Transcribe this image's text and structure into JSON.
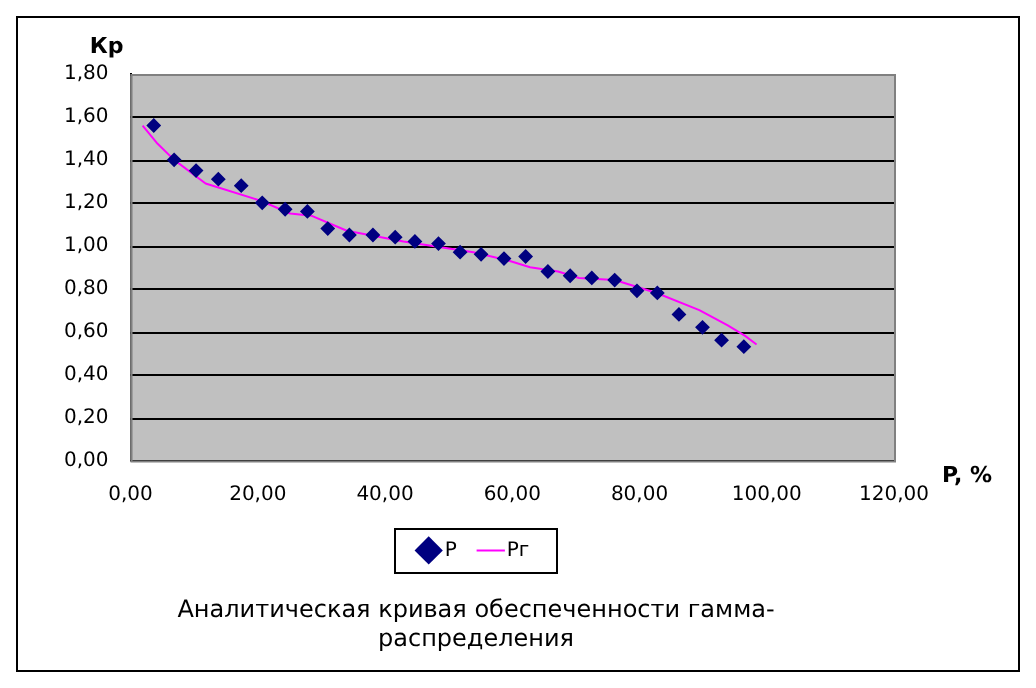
{
  "chart_data": {
    "type": "scatter",
    "title": "Аналитическая кривая обеспеченности гамма-распределения",
    "xlabel": "P, %",
    "ylabel": "Кр",
    "xlim": [
      0,
      120
    ],
    "xticks": [
      {
        "value": 0,
        "label": "0,00"
      },
      {
        "value": 20,
        "label": "20,00"
      },
      {
        "value": 40,
        "label": "40,00"
      },
      {
        "value": 60,
        "label": "60,00"
      },
      {
        "value": 80,
        "label": "80,00"
      },
      {
        "value": 100,
        "label": "100,00"
      },
      {
        "value": 120,
        "label": "120,00"
      }
    ],
    "ylim": [
      0,
      1.8
    ],
    "yticks": [
      {
        "value": 0,
        "label": "0,00"
      },
      {
        "value": 0.2,
        "label": "0,20"
      },
      {
        "value": 0.4,
        "label": "0,40"
      },
      {
        "value": 0.6,
        "label": "0,60"
      },
      {
        "value": 0.8,
        "label": "0,80"
      },
      {
        "value": 1.0,
        "label": "1,00"
      },
      {
        "value": 1.2,
        "label": "1,20"
      },
      {
        "value": 1.4,
        "label": "1,40"
      },
      {
        "value": 1.6,
        "label": "1,60"
      },
      {
        "value": 1.8,
        "label": "1,80"
      }
    ],
    "grid": "y",
    "legend": "bottom",
    "series": [
      {
        "name": "P",
        "marker": "diamond",
        "color": "#000080",
        "x": [
          3.65,
          6.85,
          10.3,
          13.8,
          17.4,
          20.7,
          24.3,
          27.8,
          31.0,
          34.4,
          38.1,
          41.6,
          44.7,
          48.4,
          51.8,
          55.1,
          58.7,
          62.1,
          65.6,
          69.1,
          72.5,
          76.1,
          79.6,
          82.8,
          86.2,
          89.9,
          92.9,
          96.4
        ],
        "values": [
          1.56,
          1.4,
          1.35,
          1.31,
          1.28,
          1.2,
          1.17,
          1.16,
          1.08,
          1.05,
          1.05,
          1.04,
          1.02,
          1.01,
          0.97,
          0.96,
          0.94,
          0.95,
          0.88,
          0.86,
          0.85,
          0.84,
          0.79,
          0.78,
          0.68,
          0.62,
          0.56,
          0.53
        ]
      },
      {
        "name": "Pг",
        "type": "line",
        "marker": "none",
        "line_style": "solid",
        "color": "#ff00ff",
        "x": [
          1.9,
          4.1,
          6.85,
          11.8,
          20.4,
          25.1,
          28.4,
          34.0,
          42.9,
          53.9,
          59.5,
          62.8,
          67.2,
          70.5,
          76.1,
          82.7,
          89.4,
          93.8,
          96.6,
          98.4
        ],
        "values": [
          1.56,
          1.48,
          1.4,
          1.29,
          1.21,
          1.15,
          1.14,
          1.07,
          1.02,
          0.97,
          0.93,
          0.9,
          0.88,
          0.85,
          0.84,
          0.78,
          0.7,
          0.63,
          0.58,
          0.54
        ]
      }
    ]
  }
}
